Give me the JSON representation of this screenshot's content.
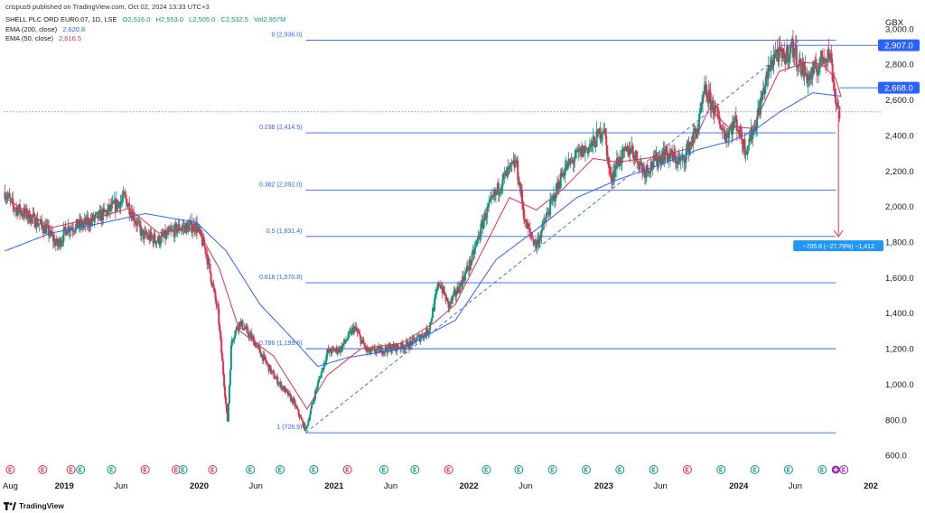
{
  "header": {
    "published": "crispus9 published on TradingView.com, Oct 02, 2024 13:33 UTC+3"
  },
  "legend": {
    "symbol": "SHELL PLC ORD EUR0.07, 1D, LSE",
    "open": "O2,516.0",
    "high": "H2,553.0",
    "low": "L2,505.0",
    "close": "C2,532.5",
    "vol": "Vol2.957M",
    "ema200_label": "EMA (200, close)",
    "ema200_value": "2,620.8",
    "ema50_label": "EMA (50, close)",
    "ema50_value": "2,616.5"
  },
  "footer": {
    "brand": "TradingView"
  },
  "colors": {
    "up": "#089981",
    "down": "#e0314b",
    "ema200": "#2962ff",
    "ema50": "#e0314b",
    "fib": "#2962ff",
    "axisTag": "#2962ff"
  },
  "chart_data": {
    "type": "candlestick",
    "title": "SHELL PLC ORD EUR0.07, 1D, LSE",
    "currency": "GBX",
    "ylim": [
      560,
      3050
    ],
    "y_ticks": [
      600,
      800,
      1000,
      1200,
      1400,
      1600,
      1800,
      2000,
      2200,
      2400,
      2600,
      2800,
      3000
    ],
    "y_tick_labels": [
      "600.0",
      "800.0",
      "1,000.0",
      "1,200.0",
      "1,400.0",
      "1,600.0",
      "1,800.0",
      "2,000.0",
      "2,200.0",
      "2,400.0",
      "2,600.0",
      "2,800.0",
      "3,000.0"
    ],
    "x_range": [
      2018.55,
      2025.0
    ],
    "x_ticks": [
      {
        "t": 2018.6,
        "label": "Aug",
        "bold": false
      },
      {
        "t": 2019.0,
        "label": "2019",
        "bold": true
      },
      {
        "t": 2019.42,
        "label": "Jun",
        "bold": false
      },
      {
        "t": 2020.0,
        "label": "2020",
        "bold": true
      },
      {
        "t": 2020.42,
        "label": "Jun",
        "bold": false
      },
      {
        "t": 2021.0,
        "label": "2021",
        "bold": true
      },
      {
        "t": 2021.42,
        "label": "Jun",
        "bold": false
      },
      {
        "t": 2022.0,
        "label": "2022",
        "bold": true
      },
      {
        "t": 2022.42,
        "label": "Jun",
        "bold": false
      },
      {
        "t": 2023.0,
        "label": "2023",
        "bold": true
      },
      {
        "t": 2023.42,
        "label": "Jun",
        "bold": false
      },
      {
        "t": 2024.0,
        "label": "2024",
        "bold": true
      },
      {
        "t": 2024.42,
        "label": "Jun",
        "bold": false
      },
      {
        "t": 2024.98,
        "label": "202",
        "bold": true
      }
    ],
    "price_anchors": [
      [
        2018.56,
        2080
      ],
      [
        2018.62,
        2000
      ],
      [
        2018.75,
        1940
      ],
      [
        2018.87,
        1870
      ],
      [
        2018.95,
        1780
      ],
      [
        2019.02,
        1880
      ],
      [
        2019.15,
        1900
      ],
      [
        2019.3,
        1960
      ],
      [
        2019.45,
        2050
      ],
      [
        2019.58,
        1840
      ],
      [
        2019.7,
        1810
      ],
      [
        2019.85,
        1880
      ],
      [
        2019.98,
        1890
      ],
      [
        2020.05,
        1750
      ],
      [
        2020.14,
        1400
      ],
      [
        2020.18,
        1050
      ],
      [
        2020.21,
        780
      ],
      [
        2020.24,
        1250
      ],
      [
        2020.3,
        1350
      ],
      [
        2020.4,
        1250
      ],
      [
        2020.55,
        1050
      ],
      [
        2020.7,
        900
      ],
      [
        2020.79,
        740
      ],
      [
        2020.86,
        950
      ],
      [
        2020.95,
        1180
      ],
      [
        2021.05,
        1200
      ],
      [
        2021.15,
        1320
      ],
      [
        2021.25,
        1180
      ],
      [
        2021.4,
        1200
      ],
      [
        2021.55,
        1220
      ],
      [
        2021.7,
        1300
      ],
      [
        2021.78,
        1580
      ],
      [
        2021.85,
        1440
      ],
      [
        2021.93,
        1550
      ],
      [
        2022.02,
        1700
      ],
      [
        2022.12,
        1950
      ],
      [
        2022.25,
        2150
      ],
      [
        2022.35,
        2250
      ],
      [
        2022.42,
        1900
      ],
      [
        2022.5,
        1780
      ],
      [
        2022.58,
        1950
      ],
      [
        2022.7,
        2200
      ],
      [
        2022.82,
        2300
      ],
      [
        2022.92,
        2350
      ],
      [
        2023.0,
        2450
      ],
      [
        2023.05,
        2150
      ],
      [
        2023.1,
        2250
      ],
      [
        2023.2,
        2330
      ],
      [
        2023.3,
        2200
      ],
      [
        2023.45,
        2300
      ],
      [
        2023.58,
        2250
      ],
      [
        2023.7,
        2450
      ],
      [
        2023.75,
        2650
      ],
      [
        2023.82,
        2550
      ],
      [
        2023.9,
        2400
      ],
      [
        2023.98,
        2480
      ],
      [
        2024.05,
        2320
      ],
      [
        2024.12,
        2450
      ],
      [
        2024.2,
        2700
      ],
      [
        2024.27,
        2870
      ],
      [
        2024.33,
        2830
      ],
      [
        2024.4,
        2900
      ],
      [
        2024.45,
        2800
      ],
      [
        2024.52,
        2720
      ],
      [
        2024.58,
        2780
      ],
      [
        2024.64,
        2860
      ],
      [
        2024.68,
        2850
      ],
      [
        2024.72,
        2600
      ],
      [
        2024.75,
        2530
      ]
    ],
    "ema50_anchors": [
      [
        2018.56,
        2050
      ],
      [
        2018.9,
        1880
      ],
      [
        2019.3,
        1950
      ],
      [
        2019.48,
        1990
      ],
      [
        2019.7,
        1850
      ],
      [
        2019.98,
        1880
      ],
      [
        2020.15,
        1650
      ],
      [
        2020.3,
        1300
      ],
      [
        2020.55,
        1160
      ],
      [
        2020.8,
        860
      ],
      [
        2020.95,
        1050
      ],
      [
        2021.2,
        1200
      ],
      [
        2021.5,
        1230
      ],
      [
        2021.75,
        1350
      ],
      [
        2021.9,
        1450
      ],
      [
        2022.1,
        1750
      ],
      [
        2022.3,
        2050
      ],
      [
        2022.5,
        1980
      ],
      [
        2022.7,
        2100
      ],
      [
        2022.92,
        2270
      ],
      [
        2023.1,
        2250
      ],
      [
        2023.4,
        2280
      ],
      [
        2023.65,
        2330
      ],
      [
        2023.78,
        2550
      ],
      [
        2023.92,
        2450
      ],
      [
        2024.1,
        2440
      ],
      [
        2024.3,
        2760
      ],
      [
        2024.5,
        2810
      ],
      [
        2024.62,
        2800
      ],
      [
        2024.72,
        2720
      ],
      [
        2024.76,
        2616.5
      ]
    ],
    "ema200_anchors": [
      [
        2018.56,
        1750
      ],
      [
        2018.9,
        1850
      ],
      [
        2019.3,
        1910
      ],
      [
        2019.6,
        1960
      ],
      [
        2019.98,
        1910
      ],
      [
        2020.2,
        1750
      ],
      [
        2020.45,
        1450
      ],
      [
        2020.7,
        1250
      ],
      [
        2020.88,
        1100
      ],
      [
        2021.1,
        1150
      ],
      [
        2021.5,
        1200
      ],
      [
        2021.9,
        1360
      ],
      [
        2022.2,
        1700
      ],
      [
        2022.5,
        1870
      ],
      [
        2022.8,
        2050
      ],
      [
        2023.1,
        2150
      ],
      [
        2023.4,
        2230
      ],
      [
        2023.7,
        2320
      ],
      [
        2023.95,
        2370
      ],
      [
        2024.1,
        2420
      ],
      [
        2024.3,
        2530
      ],
      [
        2024.55,
        2640
      ],
      [
        2024.76,
        2620.8
      ]
    ],
    "fib_start": 2020.79,
    "fib_end": 2024.72,
    "fib_levels": [
      {
        "ratio": "0",
        "price": 2936.0,
        "label": "0 (2,936.0)"
      },
      {
        "ratio": "0.236",
        "price": 2414.5,
        "label": "0.236 (2,414.5)"
      },
      {
        "ratio": "0.382",
        "price": 2092.0,
        "label": "0.382 (2,092.0)"
      },
      {
        "ratio": "0.5",
        "price": 1831.4,
        "label": "0.5 (1,831.4)"
      },
      {
        "ratio": "0.618",
        "price": 1570.8,
        "label": "0.618 (1,570.8)"
      },
      {
        "ratio": "0.786",
        "price": 1199.6,
        "label": "0.786 (1,199.6)"
      },
      {
        "ratio": "1",
        "price": 726.9,
        "label": "1 (726.9)"
      }
    ],
    "trend_line": [
      [
        2020.79,
        726.9
      ],
      [
        2024.45,
        2936.0
      ]
    ],
    "hlines": [
      {
        "price": 2907.0,
        "label": "2,907.0",
        "x_from": 2024.3
      },
      {
        "price": 2668.0,
        "label": "2,668.0",
        "x_from": 2024.75
      }
    ],
    "current_price_line": 2532.5,
    "measure": {
      "x": 2024.74,
      "from": 2536,
      "to": 1830,
      "label": "−705.8 (−27.79%) −1,412"
    },
    "event_markers": [
      {
        "t": 2018.6,
        "type": "dividend"
      },
      {
        "t": 2018.84,
        "type": "dividend"
      },
      {
        "t": 2019.05,
        "type": "dividend"
      },
      {
        "t": 2019.12,
        "type": "earnings"
      },
      {
        "t": 2019.35,
        "type": "earnings"
      },
      {
        "t": 2019.6,
        "type": "dividend"
      },
      {
        "t": 2019.83,
        "type": "dividend"
      },
      {
        "t": 2019.88,
        "type": "earnings"
      },
      {
        "t": 2020.1,
        "type": "dividend"
      },
      {
        "t": 2020.38,
        "type": "earnings"
      },
      {
        "t": 2020.6,
        "type": "earnings"
      },
      {
        "t": 2020.85,
        "type": "earnings"
      },
      {
        "t": 2021.1,
        "type": "dividend"
      },
      {
        "t": 2021.37,
        "type": "earnings"
      },
      {
        "t": 2021.6,
        "type": "earnings"
      },
      {
        "t": 2021.85,
        "type": "dividend"
      },
      {
        "t": 2022.13,
        "type": "earnings"
      },
      {
        "t": 2022.37,
        "type": "earnings"
      },
      {
        "t": 2022.62,
        "type": "earnings"
      },
      {
        "t": 2022.87,
        "type": "earnings"
      },
      {
        "t": 2023.12,
        "type": "earnings"
      },
      {
        "t": 2023.37,
        "type": "earnings"
      },
      {
        "t": 2023.62,
        "type": "dividend"
      },
      {
        "t": 2023.87,
        "type": "earnings"
      },
      {
        "t": 2024.12,
        "type": "earnings"
      },
      {
        "t": 2024.37,
        "type": "earnings"
      },
      {
        "t": 2024.62,
        "type": "earnings"
      },
      {
        "t": 2024.72,
        "type": "plus"
      },
      {
        "t": 2024.78,
        "type": "earnings-future"
      }
    ]
  }
}
